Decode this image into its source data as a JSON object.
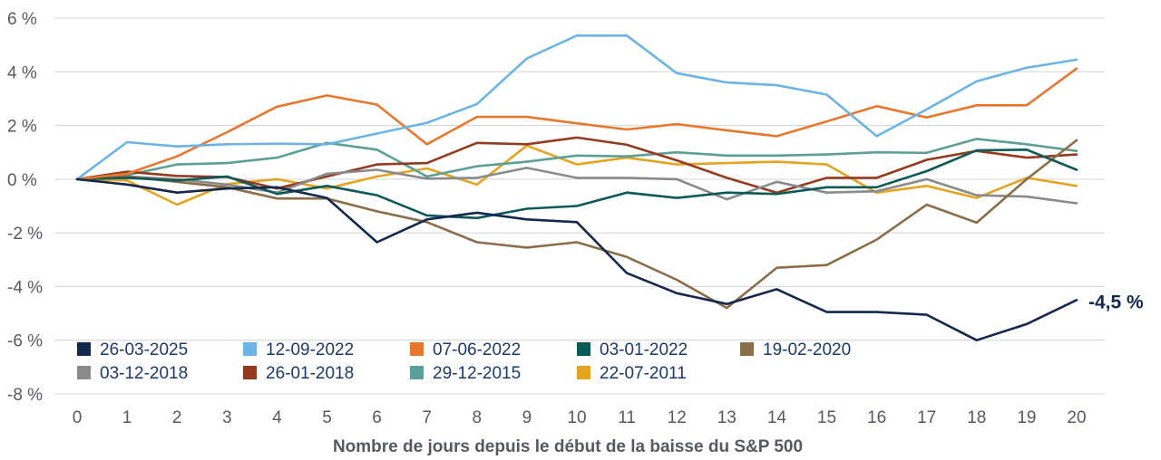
{
  "chart_data": {
    "type": "line",
    "xlabel": "Nombre de jours depuis le début de la baisse du S&P 500",
    "ylabel": "",
    "x": [
      0,
      1,
      2,
      3,
      4,
      5,
      6,
      7,
      8,
      9,
      10,
      11,
      12,
      13,
      14,
      15,
      16,
      17,
      18,
      19,
      20
    ],
    "ylim": [
      -8,
      6
    ],
    "yticks": [
      6,
      4,
      2,
      0,
      -2,
      -4,
      -6,
      -8
    ],
    "ytick_labels": [
      "6 %",
      "4 %",
      "2 %",
      "0 %",
      "-2 %",
      "-4 %",
      "-6 %",
      "-8 %"
    ],
    "xtick_labels": [
      "0",
      "1",
      "2",
      "3",
      "4",
      "5",
      "6",
      "7",
      "8",
      "9",
      "10",
      "11",
      "12",
      "13",
      "14",
      "15",
      "16",
      "17",
      "18",
      "19",
      "20"
    ],
    "grid": "horizontal",
    "legend_position": "bottom-left",
    "end_annotation": "-4,5 %",
    "series": [
      {
        "name": "26-03-2025",
        "color": "#13284f",
        "values": [
          0,
          -0.2,
          -0.5,
          -0.35,
          -0.3,
          -0.7,
          -2.35,
          -1.5,
          -1.25,
          -1.5,
          -1.6,
          -3.5,
          -4.25,
          -4.65,
          -4.1,
          -4.95,
          -4.95,
          -5.05,
          -6.0,
          -5.4,
          -4.5
        ]
      },
      {
        "name": "12-09-2022",
        "color": "#6cb4e4",
        "values": [
          0,
          1.38,
          1.22,
          1.3,
          1.32,
          1.3,
          1.7,
          2.1,
          2.8,
          4.5,
          5.35,
          5.35,
          3.95,
          3.6,
          3.5,
          3.15,
          1.6,
          2.6,
          3.65,
          4.15,
          4.45
        ]
      },
      {
        "name": "07-06-2022",
        "color": "#e8772e",
        "values": [
          0,
          0.2,
          0.85,
          1.75,
          2.7,
          3.12,
          2.78,
          1.3,
          2.32,
          2.32,
          2.08,
          1.85,
          2.05,
          1.82,
          1.6,
          2.15,
          2.72,
          2.3,
          2.75,
          2.75,
          4.12
        ]
      },
      {
        "name": "03-01-2022",
        "color": "#0b5a58",
        "values": [
          0,
          0.05,
          -0.05,
          0.1,
          -0.55,
          -0.25,
          -0.6,
          -1.35,
          -1.45,
          -1.1,
          -1.0,
          -0.5,
          -0.7,
          -0.5,
          -0.55,
          -0.3,
          -0.3,
          0.3,
          1.07,
          1.1,
          0.35
        ]
      },
      {
        "name": "19-02-2020",
        "color": "#8b6d4a",
        "values": [
          0,
          0.1,
          -0.1,
          -0.3,
          -0.72,
          -0.72,
          -1.2,
          -1.6,
          -2.35,
          -2.55,
          -2.35,
          -2.9,
          -3.75,
          -4.8,
          -3.3,
          -3.2,
          -2.25,
          -0.95,
          -1.62,
          0.0,
          1.45
        ]
      },
      {
        "name": "03-12-2018",
        "color": "#8a8a8a",
        "values": [
          0,
          0.1,
          0.0,
          -0.2,
          -0.5,
          0.2,
          0.35,
          0.02,
          0.05,
          0.42,
          0.05,
          0.05,
          0.0,
          -0.75,
          -0.1,
          -0.5,
          -0.45,
          0.0,
          -0.6,
          -0.65,
          -0.9
        ]
      },
      {
        "name": "26-01-2018",
        "color": "#963a1f",
        "values": [
          0,
          0.28,
          0.12,
          0.08,
          -0.35,
          0.1,
          0.55,
          0.6,
          1.35,
          1.3,
          1.55,
          1.28,
          0.7,
          0.05,
          -0.5,
          0.05,
          0.05,
          0.72,
          1.05,
          0.8,
          0.92
        ]
      },
      {
        "name": "29-12-2015",
        "color": "#5ba096",
        "values": [
          0,
          0.15,
          0.55,
          0.6,
          0.8,
          1.35,
          1.1,
          0.1,
          0.48,
          0.65,
          0.88,
          0.85,
          1.0,
          0.88,
          0.88,
          0.92,
          1.0,
          0.98,
          1.5,
          1.3,
          1.05
        ]
      },
      {
        "name": "22-07-2011",
        "color": "#e3a422",
        "values": [
          0,
          -0.05,
          -0.95,
          -0.18,
          0.0,
          -0.35,
          0.1,
          0.4,
          -0.2,
          1.25,
          0.55,
          0.8,
          0.55,
          0.6,
          0.65,
          0.55,
          -0.5,
          -0.25,
          -0.7,
          0.05,
          -0.25
        ]
      }
    ]
  }
}
